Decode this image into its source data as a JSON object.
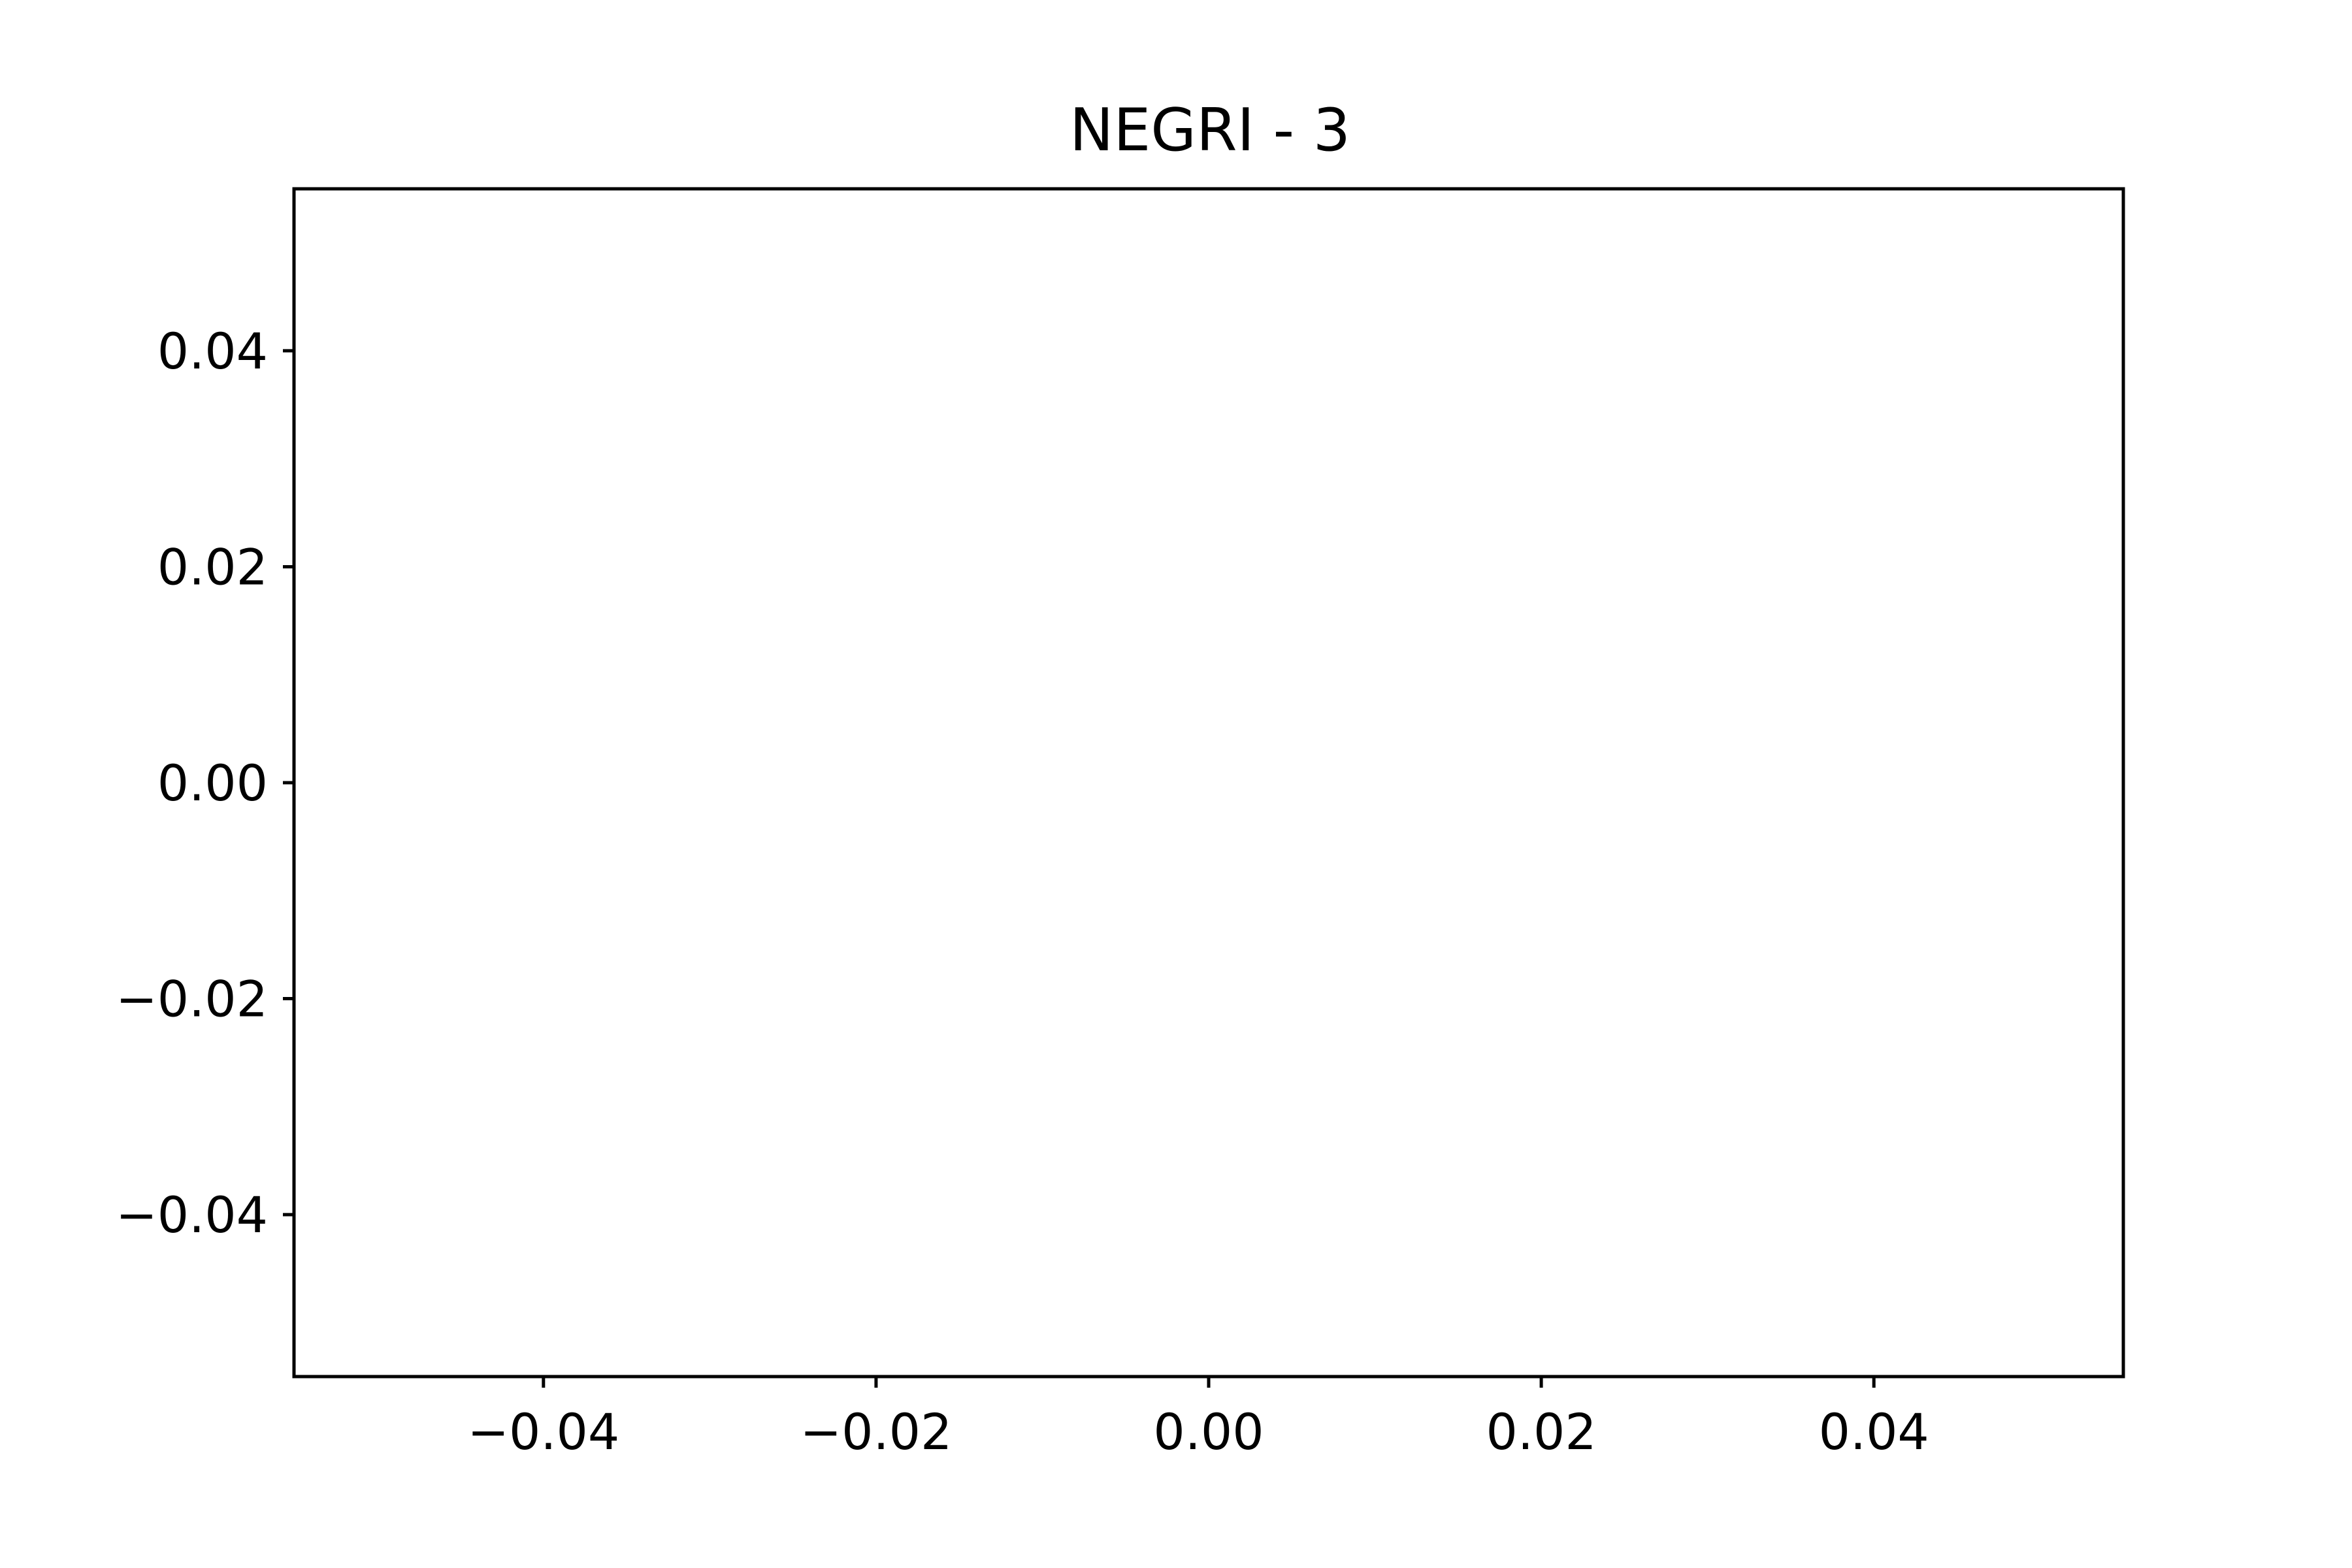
{
  "chart_data": {
    "type": "scatter",
    "title": "NEGRI - 3",
    "xlabel": "",
    "ylabel": "",
    "xlim": [
      -0.055,
      0.055
    ],
    "ylim": [
      -0.055,
      0.055
    ],
    "xticks": [
      -0.04,
      -0.02,
      0.0,
      0.02,
      0.04
    ],
    "xtick_labels": [
      "−0.04",
      "−0.02",
      "0.00",
      "0.02",
      "0.04"
    ],
    "yticks": [
      -0.04,
      -0.02,
      0.0,
      0.02,
      0.04
    ],
    "ytick_labels": [
      "−0.04",
      "−0.02",
      "0.00",
      "0.02",
      "0.04"
    ],
    "grid": false,
    "series": [],
    "colors": {
      "axes": "#000000",
      "background": "#ffffff"
    }
  }
}
